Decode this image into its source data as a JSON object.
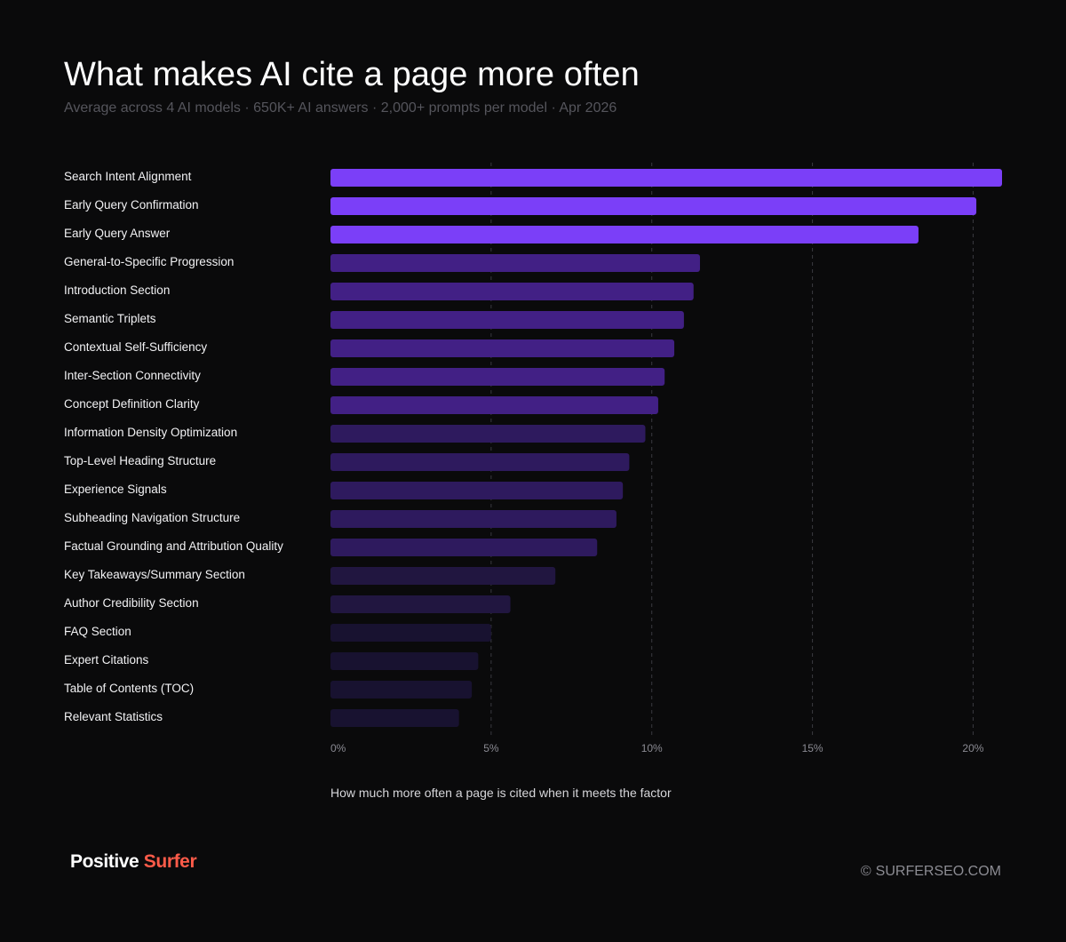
{
  "header": {
    "title": "What makes AI cite a page more often",
    "subtitle": "Average across 4 AI models  ·  650K+ AI answers · 2,000+ prompts per model · Apr 2026"
  },
  "chart_data": {
    "type": "bar",
    "orientation": "horizontal",
    "title": "What makes AI cite a page more often",
    "subtitle": "Average across 4 AI models  ·  650K+ AI answers · 2,000+ prompts per model · Apr 2026",
    "xlabel": "How much more often a page is cited when it meets the factor",
    "ylabel": "",
    "xlim": [
      0,
      20.9
    ],
    "ticks": [
      {
        "value": 0,
        "label": "0%"
      },
      {
        "value": 5,
        "label": "5%"
      },
      {
        "value": 10,
        "label": "10%"
      },
      {
        "value": 15,
        "label": "15%"
      },
      {
        "value": 20,
        "label": "20%"
      }
    ],
    "grid": "vertical-dashed",
    "categories": [
      "Search Intent Alignment",
      "Early Query Confirmation",
      "Early Query Answer",
      "General-to-Specific Progression",
      "Introduction Section",
      "Semantic Triplets",
      "Contextual Self-Sufficiency",
      "Inter-Section Connectivity",
      "Concept Definition Clarity",
      "Information Density Optimization",
      "Top-Level Heading Structure",
      "Experience Signals",
      "Subheading Navigation Structure",
      "Factual Grounding and Attribution Quality",
      "Key Takeaways/Summary Section",
      "Author Credibility Section",
      "FAQ Section",
      "Expert Citations",
      "Table of Contents (TOC)",
      "Relevant Statistics"
    ],
    "values": [
      20.9,
      20.1,
      18.3,
      11.5,
      11.3,
      11.0,
      10.7,
      10.4,
      10.2,
      9.8,
      9.3,
      9.1,
      8.9,
      8.3,
      7.0,
      5.6,
      5.0,
      4.6,
      4.4,
      4.0
    ],
    "bar_colors": [
      "#7b3ff8",
      "#7b3ff8",
      "#7b3ff8",
      "#422085",
      "#422085",
      "#422085",
      "#422085",
      "#422085",
      "#422085",
      "#2e1a5e",
      "#2e1a5e",
      "#2e1a5e",
      "#2e1a5e",
      "#2e1a5e",
      "#211640",
      "#211640",
      "#181230",
      "#181230",
      "#181230",
      "#181230"
    ]
  },
  "footer": {
    "brand_part1": "Positive",
    "brand_part2": "Surfer",
    "copyright_symbol": "©",
    "copyright_text": "SURFERSEO.COM"
  },
  "colors": {
    "background": "#0a0a0b",
    "brand_accent": "#ff5b49",
    "grid": "#3a3a40"
  }
}
